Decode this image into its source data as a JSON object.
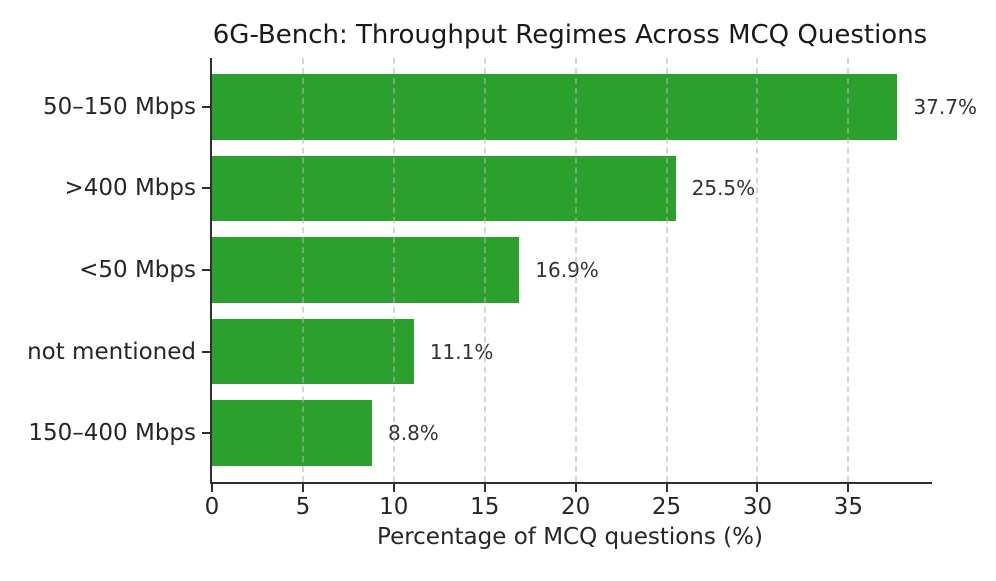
{
  "figure": {
    "background": "#ffffff"
  },
  "chart_data": {
    "type": "bar",
    "orientation": "horizontal",
    "title": "6G-Bench: Throughput Regimes Across MCQ Questions",
    "xlabel": "Percentage of MCQ questions (%)",
    "ylabel": "",
    "categories": [
      "50–150 Mbps",
      ">400 Mbps",
      "<50 Mbps",
      "not mentioned",
      "150–400 Mbps"
    ],
    "values": [
      37.7,
      25.5,
      16.9,
      11.1,
      8.8
    ],
    "value_labels": [
      "37.7%",
      "25.5%",
      "16.9%",
      "11.1%",
      "8.8%"
    ],
    "x_ticks": [
      0,
      5,
      10,
      15,
      20,
      25,
      30,
      35
    ],
    "xlim": [
      0,
      39.6
    ],
    "grid": {
      "axis": "x",
      "style": "dashed",
      "color": "#b2b2b2"
    },
    "legend": null,
    "bar_color": "#2ca02c",
    "text_color": "#262626",
    "axis_color": "#2f2f2f",
    "bar_height_fraction": 0.8
  }
}
